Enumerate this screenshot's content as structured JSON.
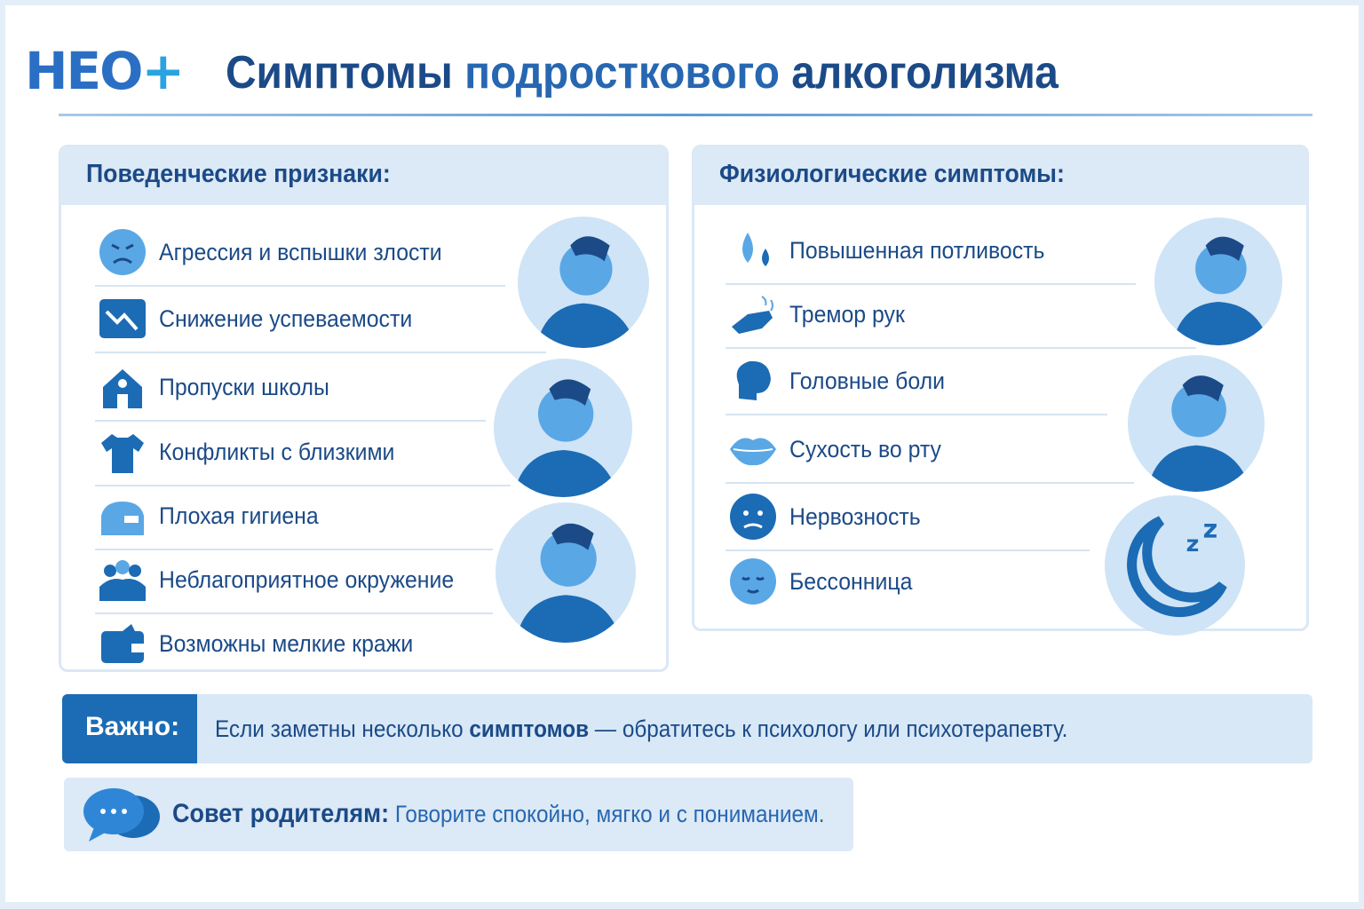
{
  "logo": {
    "text_main": "НЕО",
    "text_plus": "+"
  },
  "title": {
    "part1": "Симптомы ",
    "part2": "подросткового",
    "part3": " алкоголизма"
  },
  "behavioral": {
    "heading": "Поведенческие признаки:",
    "items": [
      {
        "label": "Агрессия и вспышки злости",
        "icon": "angry-face-icon"
      },
      {
        "label": "Снижение успеваемости",
        "icon": "trend-down-icon"
      },
      {
        "label": "Пропуски школы",
        "icon": "school-icon"
      },
      {
        "label": "Конфликты с близкими",
        "icon": "torn-shirt-icon"
      },
      {
        "label": "Плохая гигиена",
        "icon": "laundry-icon"
      },
      {
        "label": "Неблагоприятное окружение",
        "icon": "group-icon"
      },
      {
        "label": "Возможны мелкие кражи",
        "icon": "wallet-icon"
      }
    ]
  },
  "physiological": {
    "heading": "Физиологические симптомы:",
    "items": [
      {
        "label": "Повышенная потливость",
        "icon": "sweat-drops-icon"
      },
      {
        "label": "Тремор рук",
        "icon": "shaking-hand-icon"
      },
      {
        "label": "Головные боли",
        "icon": "headache-icon"
      },
      {
        "label": "Сухость во рту",
        "icon": "lips-icon"
      },
      {
        "label": "Нервозность",
        "icon": "nervous-face-icon"
      },
      {
        "label": "Бессонница",
        "icon": "sleepy-face-icon"
      }
    ]
  },
  "important": {
    "tag": "Важно:",
    "text_before": "Если заметны несколько ",
    "text_bold": "симптомов",
    "text_after": " — обратитесь к психологу или психотерапевту."
  },
  "tip": {
    "label": "Совет родителям:",
    "text": " Говорите спокойно, мягко и с пониманием."
  },
  "colors": {
    "navy": "#1b4a87",
    "accent": "#1c6bb5",
    "light": "#dce9f6"
  }
}
